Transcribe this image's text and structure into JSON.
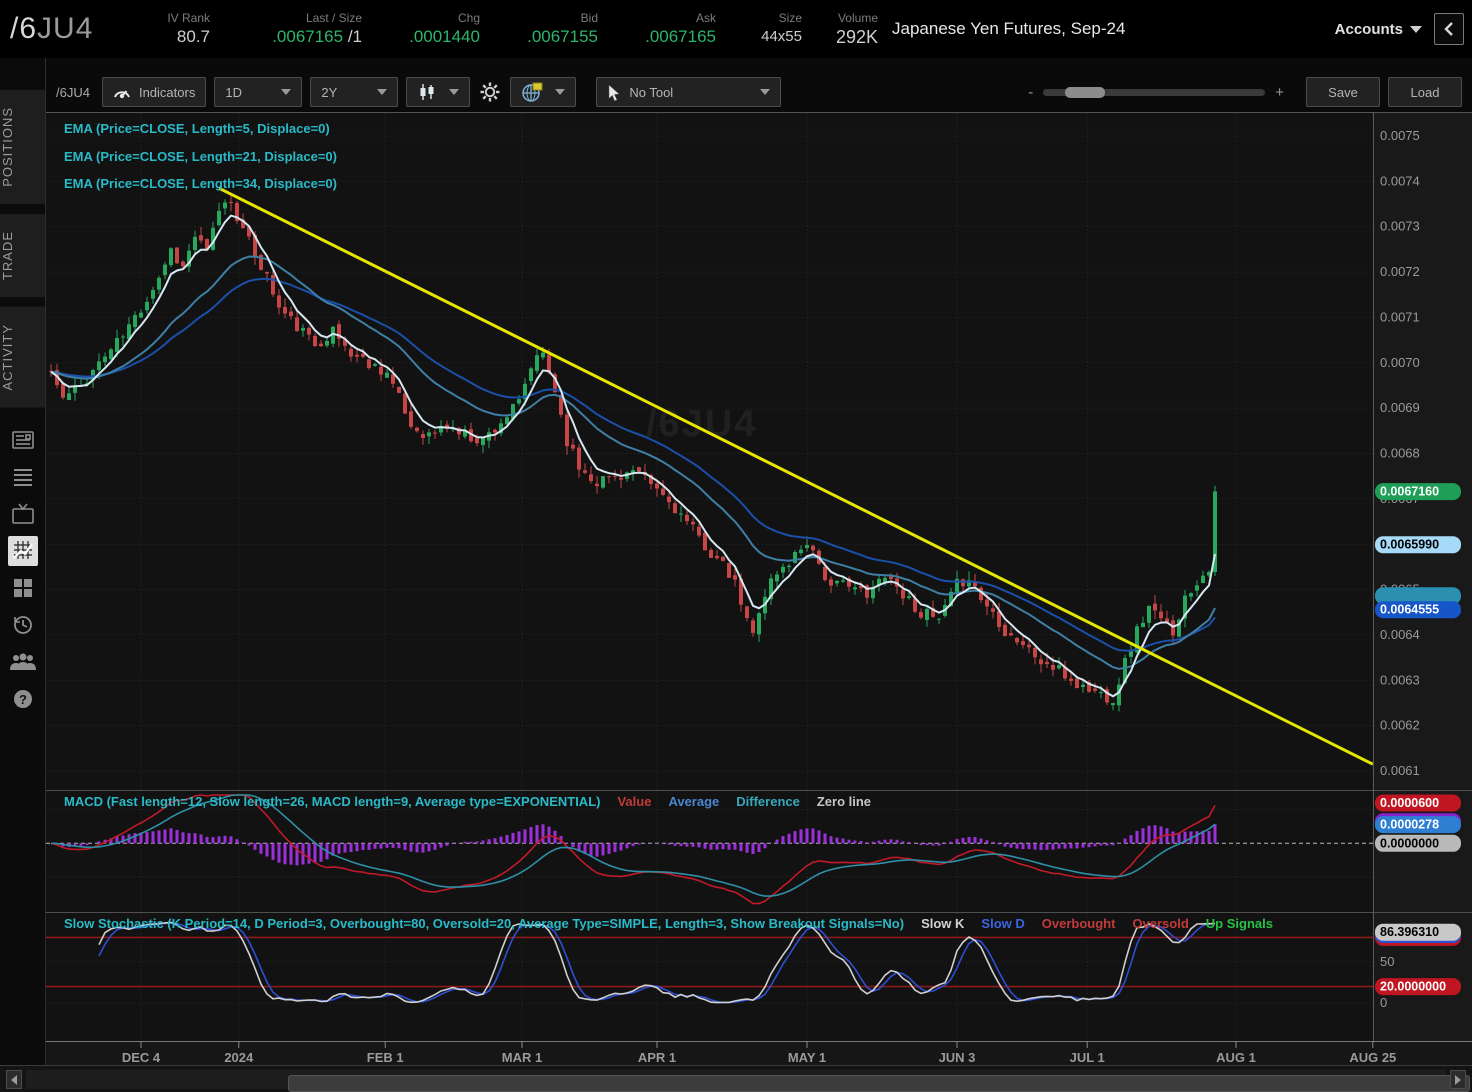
{
  "header": {
    "symbol_prefix": "/6",
    "symbol_suffix": "JU4",
    "fields": [
      {
        "label": "IV Rank",
        "value": "80.7"
      },
      {
        "label": "Last / Size",
        "value": ".0067165",
        "suffix": " /1"
      },
      {
        "label": "Chg",
        "value": ".0001440"
      },
      {
        "label": "Bid",
        "value": ".0067155"
      },
      {
        "label": "Ask",
        "value": ".0067165"
      },
      {
        "label": "Size",
        "value": "44x55"
      },
      {
        "label": "Volume",
        "value": "292K"
      }
    ],
    "description": "Japanese Yen Futures, Sep-24",
    "accounts_label": "Accounts"
  },
  "sidebar": {
    "tabs": [
      {
        "label": "POSITIONS"
      },
      {
        "label": "TRADE"
      },
      {
        "label": "ACTIVITY"
      }
    ],
    "icons": [
      "news-icon",
      "list-icon",
      "tv-icon",
      "chart-grid-icon",
      "apps-grid-icon",
      "history-icon",
      "people-icon",
      "help-icon"
    ]
  },
  "toolbar": {
    "symbol_label": "/6JU4",
    "indicators_label": "Indicators",
    "timeframe": "1D",
    "range": "2Y",
    "tool_label": "No Tool",
    "zoom_minus": "-",
    "zoom_plus": "+",
    "save_label": "Save",
    "load_label": "Load"
  },
  "studies": {
    "ema_labels": [
      "EMA (Price=CLOSE, Length=5, Displace=0)",
      "EMA (Price=CLOSE, Length=21, Displace=0)",
      "EMA (Price=CLOSE, Length=34, Displace=0)"
    ],
    "macd_label": "MACD (Fast length=12, Slow length=26, MACD length=9, Average type=EXPONENTIAL)",
    "macd_legend": [
      {
        "text": "Value",
        "color": "#c23b3b"
      },
      {
        "text": "Average",
        "color": "#4a86d2"
      },
      {
        "text": "Difference",
        "color": "#36a9bd"
      },
      {
        "text": "Zero line",
        "color": "#c6c6c6"
      }
    ],
    "stoch_label": "Slow Stochastic (K Period=14, D Period=3, Overbought=80, Oversold=20, Average Type=SIMPLE, Length=3, Show Breakout Signals=No)",
    "stoch_legend": [
      {
        "text": "Slow K",
        "color": "#d4d4d4"
      },
      {
        "text": "Slow D",
        "color": "#3c64e0"
      },
      {
        "text": "Overbought",
        "color": "#c23b3b"
      },
      {
        "text": "Oversold",
        "color": "#c23b3b"
      },
      {
        "text": "Up Signals",
        "color": "#27c244"
      }
    ]
  },
  "watermark": "/6JU4",
  "chart_data": {
    "type": "candlestick",
    "symbol": "/6JU4",
    "timeframe": "1D",
    "range": "2Y",
    "days": 195,
    "seed": 11,
    "noise": 2.8e-05,
    "last_close": 0.0067165,
    "close_anchors": [
      [
        0,
        0.00698
      ],
      [
        2,
        0.00692
      ],
      [
        5,
        0.00695
      ],
      [
        8,
        0.007
      ],
      [
        12,
        0.00706
      ],
      [
        15,
        0.00712
      ],
      [
        18,
        0.00719
      ],
      [
        20,
        0.00725
      ],
      [
        22,
        0.00721
      ],
      [
        24,
        0.00728
      ],
      [
        26,
        0.00724
      ],
      [
        28,
        0.00734
      ],
      [
        30,
        0.00736
      ],
      [
        32,
        0.00729
      ],
      [
        34,
        0.00724
      ],
      [
        36,
        0.00719
      ],
      [
        38,
        0.00712
      ],
      [
        41,
        0.00708
      ],
      [
        44,
        0.00704
      ],
      [
        47,
        0.00707
      ],
      [
        50,
        0.00702
      ],
      [
        53,
        0.007
      ],
      [
        56,
        0.00698
      ],
      [
        58,
        0.00692
      ],
      [
        60,
        0.00686
      ],
      [
        63,
        0.00684
      ],
      [
        66,
        0.00686
      ],
      [
        69,
        0.00684
      ],
      [
        72,
        0.00683
      ],
      [
        75,
        0.00687
      ],
      [
        78,
        0.00691
      ],
      [
        80,
        0.00699
      ],
      [
        82,
        0.00702
      ],
      [
        84,
        0.00694
      ],
      [
        86,
        0.00683
      ],
      [
        88,
        0.00677
      ],
      [
        91,
        0.00674
      ],
      [
        94,
        0.00675
      ],
      [
        97,
        0.00676
      ],
      [
        101,
        0.00672
      ],
      [
        104,
        0.00668
      ],
      [
        107,
        0.00663
      ],
      [
        110,
        0.00658
      ],
      [
        112,
        0.00655
      ],
      [
        114,
        0.00651
      ],
      [
        116,
        0.00643
      ],
      [
        117,
        0.0064
      ],
      [
        118,
        0.00646
      ],
      [
        120,
        0.00652
      ],
      [
        123,
        0.00656
      ],
      [
        126,
        0.00661
      ],
      [
        128,
        0.00656
      ],
      [
        130,
        0.0065
      ],
      [
        133,
        0.00652
      ],
      [
        136,
        0.00648
      ],
      [
        139,
        0.00654
      ],
      [
        142,
        0.00649
      ],
      [
        145,
        0.00645
      ],
      [
        148,
        0.00643
      ],
      [
        151,
        0.00651
      ],
      [
        153,
        0.00653
      ],
      [
        155,
        0.00648
      ],
      [
        157,
        0.00645
      ],
      [
        159,
        0.00641
      ],
      [
        162,
        0.00638
      ],
      [
        165,
        0.00634
      ],
      [
        168,
        0.00632
      ],
      [
        171,
        0.00629
      ],
      [
        173,
        0.00628
      ],
      [
        175,
        0.00627
      ],
      [
        177,
        0.00626
      ],
      [
        179,
        0.00634
      ],
      [
        181,
        0.00641
      ],
      [
        183,
        0.00646
      ],
      [
        185,
        0.00643
      ],
      [
        187,
        0.00641
      ],
      [
        189,
        0.00648
      ],
      [
        191,
        0.00652
      ],
      [
        193,
        0.00655
      ],
      [
        194,
        0.0067165
      ]
    ],
    "candle_up_color": "#27a85c",
    "candle_down_color": "#c84545",
    "emas": [
      {
        "length": 5,
        "color": "#d5e8f2"
      },
      {
        "length": 21,
        "color": "#3f7fa6"
      },
      {
        "length": 34,
        "color": "#1a4faa"
      }
    ],
    "trendline": {
      "color": "#e6e600",
      "points": [
        [
          28,
          0.007385
        ],
        [
          220.3,
          0.006115
        ]
      ]
    },
    "price_axis": {
      "min": 0.0060603,
      "max": 0.0075507,
      "ticks": [
        "0.0075",
        "0.0074",
        "0.0073",
        "0.0072",
        "0.0071",
        "0.0070",
        "0.0069",
        "0.0068",
        "0.0067",
        "0.0066",
        "0.0065",
        "0.0064",
        "0.0063",
        "0.0062",
        "0.0061"
      ],
      "bubbles_back": [
        {
          "value": 0.006473,
          "bg": "#2a8fb0"
        }
      ],
      "bubbles": [
        {
          "value": 0.0064555,
          "text": "0.0064555",
          "bg": "#1656c8",
          "fg": "#ffffff"
        },
        {
          "value": 0.006599,
          "text": "0.0065990",
          "bg": "#a6daf8",
          "fg": "#000000"
        },
        {
          "value": 0.006716,
          "text": "0.0067160",
          "bg": "#1e9e57",
          "fg": "#ffffff"
        }
      ]
    },
    "time_axis": [
      {
        "label": "DEC 4",
        "day": 15
      },
      {
        "label": "2024",
        "day": 31.3
      },
      {
        "label": "FEB 1",
        "day": 55.7
      },
      {
        "label": "MAR 1",
        "day": 78.5
      },
      {
        "label": "APR 1",
        "day": 101
      },
      {
        "label": "MAY 1",
        "day": 126
      },
      {
        "label": "JUN 3",
        "day": 151
      },
      {
        "label": "JUL 1",
        "day": 172.7
      },
      {
        "label": "AUG 1",
        "day": 197.5
      },
      {
        "label": "AUG 25",
        "day": 220.3
      }
    ],
    "macd": {
      "fast": 12,
      "slow": 26,
      "signal": 9,
      "ylim": [
        -9.5e-05,
        7.2e-05
      ],
      "hist_color": "#9b30d9",
      "value_color": "#c11a28",
      "avg_color": "#2e8fa6",
      "zero_color": "#bbbbbb",
      "bubbles_back": [
        {
          "value": 3.22e-05,
          "bg": "#8822cc"
        }
      ],
      "bubbles": [
        {
          "value": 6e-05,
          "text": "0.0000600",
          "bg": "#c01622",
          "fg": "#ffffff"
        },
        {
          "value": 2.78e-05,
          "text": "0.0000278",
          "bg": "#2e7fd2",
          "fg": "#ffffff"
        },
        {
          "value": 0.0,
          "text": "0.0000000",
          "bg": "#b9b9b9",
          "fg": "#000000"
        }
      ]
    },
    "stoch": {
      "k_period": 14,
      "d_period": 3,
      "length": 3,
      "overbought": 80,
      "oversold": 20,
      "k_color": "#d0d0d0",
      "d_color": "#2e4fd4",
      "level_color": "#8b1a1a",
      "bubbles_back": [
        {
          "value": 80,
          "bg": "#c01622"
        },
        {
          "value": 83.5,
          "bg": "#2e4fd2"
        }
      ],
      "bubbles": [
        {
          "value": 20,
          "text": "20.0000000",
          "bg": "#c01622",
          "fg": "#ffffff"
        },
        {
          "value": 86.39631,
          "text": "86.396310",
          "bg": "#c8c8c8",
          "fg": "#000000"
        }
      ],
      "axis_labels": [
        {
          "value": 50,
          "text": "50"
        },
        {
          "value": 0,
          "text": "0"
        }
      ]
    }
  }
}
